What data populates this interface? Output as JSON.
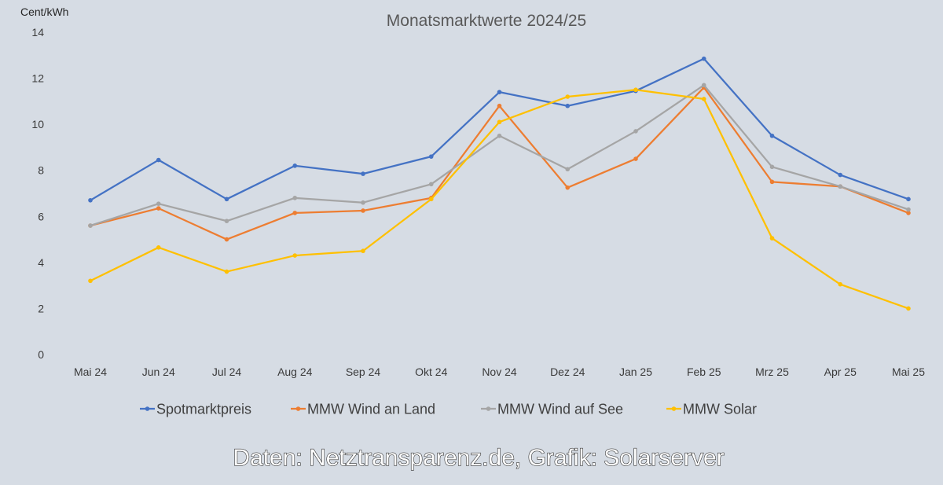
{
  "chart_data": {
    "type": "line",
    "title": "Monatsmarktwerte 2024/25",
    "ylabel": "Cent/kWh",
    "xlabel": "",
    "ylim": [
      0,
      14
    ],
    "yticks": [
      "0",
      "2",
      "4",
      "6",
      "8",
      "10",
      "12",
      "14"
    ],
    "categories": [
      "Mai 24",
      "Jun 24",
      "Jul 24",
      "Aug 24",
      "Sep 24",
      "Okt 24",
      "Nov 24",
      "Dez 24",
      "Jan 25",
      "Feb 25",
      "Mrz 25",
      "Apr 25",
      "Mai 25"
    ],
    "grid": false,
    "legend_position": "bottom",
    "series": [
      {
        "name": "Spotmarktpreis",
        "color": "#4472c4",
        "values": [
          6.7,
          8.45,
          6.75,
          8.2,
          7.85,
          8.6,
          11.4,
          10.8,
          11.45,
          12.85,
          9.5,
          7.8,
          6.75
        ]
      },
      {
        "name": "MMW Wind an Land",
        "color": "#ed7d31",
        "values": [
          5.6,
          6.35,
          5.0,
          6.15,
          6.25,
          6.8,
          10.8,
          7.25,
          8.5,
          11.6,
          7.5,
          7.3,
          6.15
        ]
      },
      {
        "name": "MMW Wind auf See",
        "color": "#a5a5a5",
        "values": [
          5.6,
          6.55,
          5.8,
          6.8,
          6.6,
          7.4,
          9.5,
          8.05,
          9.7,
          11.7,
          8.15,
          7.3,
          6.3
        ]
      },
      {
        "name": "MMW Solar",
        "color": "#ffc000",
        "values": [
          3.2,
          4.65,
          3.6,
          4.3,
          4.5,
          6.75,
          10.1,
          11.2,
          11.5,
          11.1,
          5.05,
          3.05,
          2.0
        ]
      }
    ],
    "credit": "Daten: Netztransparenz.de, Grafik: Solarserver"
  }
}
